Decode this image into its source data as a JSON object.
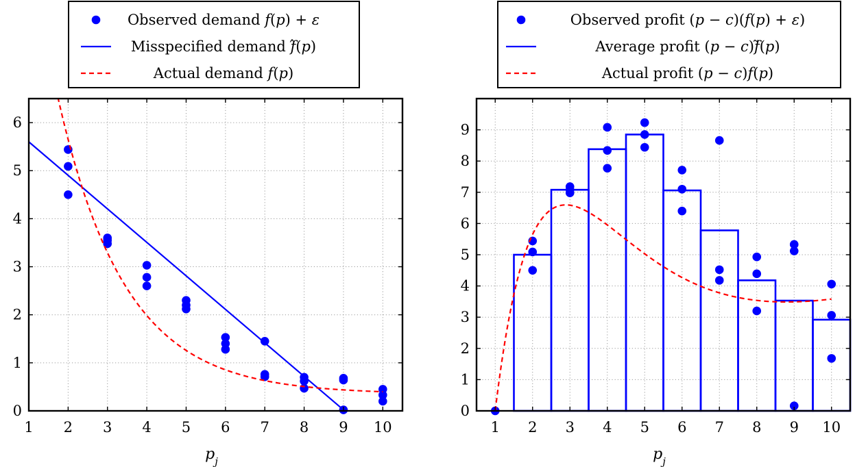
{
  "chart_data": [
    {
      "type": "scatter",
      "xlabel": "p_j",
      "xlim": [
        1,
        10.5
      ],
      "ylim": [
        0,
        6.5
      ],
      "x_ticks": [
        1,
        2,
        3,
        4,
        5,
        6,
        7,
        8,
        9,
        10
      ],
      "y_ticks": [
        0,
        1,
        2,
        3,
        4,
        5,
        6
      ],
      "grid": true,
      "legend_position": "top",
      "legend": [
        {
          "label": "Observed demand f(p) + ε",
          "style": "marker",
          "color": "#0000ff"
        },
        {
          "label": "Misspecified demand f̂(p)",
          "style": "solid",
          "color": "#0000ff"
        },
        {
          "label": "Actual demand f(p)",
          "style": "dashed",
          "color": "#ff0000"
        }
      ],
      "series": [
        {
          "kind": "scatter",
          "color": "#0000ff",
          "points": [
            [
              2,
              5.44
            ],
            [
              2,
              5.09
            ],
            [
              2,
              4.5
            ],
            [
              3,
              3.6
            ],
            [
              3,
              3.55
            ],
            [
              3,
              3.48
            ],
            [
              4,
              3.03
            ],
            [
              4,
              2.78
            ],
            [
              4,
              2.6
            ],
            [
              5,
              2.3
            ],
            [
              5,
              2.2
            ],
            [
              5,
              2.12
            ],
            [
              6,
              1.53
            ],
            [
              6,
              1.4
            ],
            [
              6,
              1.28
            ],
            [
              7,
              1.45
            ],
            [
              7,
              0.76
            ],
            [
              7,
              0.71
            ],
            [
              8,
              0.7
            ],
            [
              8,
              0.62
            ],
            [
              8,
              0.47
            ],
            [
              9,
              0.68
            ],
            [
              9,
              0.64
            ],
            [
              9,
              0.02
            ],
            [
              10,
              0.45
            ],
            [
              10,
              0.33
            ],
            [
              10,
              0.2
            ]
          ]
        },
        {
          "kind": "line",
          "color": "#0000ff",
          "points": [
            [
              1,
              5.6
            ],
            [
              9,
              0.02
            ]
          ]
        },
        {
          "kind": "dashed",
          "color": "#ff0000",
          "function": "demand"
        }
      ]
    },
    {
      "type": "bar",
      "xlabel": "p_j",
      "xlim": [
        0.5,
        10.5
      ],
      "ylim": [
        0,
        10
      ],
      "x_ticks": [
        1,
        2,
        3,
        4,
        5,
        6,
        7,
        8,
        9,
        10
      ],
      "y_ticks": [
        0,
        1,
        2,
        3,
        4,
        5,
        6,
        7,
        8,
        9
      ],
      "grid": true,
      "legend_position": "top",
      "legend": [
        {
          "label": "Observed profit (p − c)(f(p) + ε)",
          "style": "marker",
          "color": "#0000ff"
        },
        {
          "label": "Average profit (p − c)f̃(p)",
          "style": "solid",
          "color": "#0000ff"
        },
        {
          "label": "Actual profit (p − c)f(p)",
          "style": "dashed",
          "color": "#ff0000"
        }
      ],
      "bars": {
        "categories": [
          2,
          3,
          4,
          5,
          6,
          7,
          8,
          9,
          10
        ],
        "values": [
          5.0,
          7.08,
          8.38,
          8.85,
          7.06,
          5.78,
          4.18,
          3.53,
          2.92
        ]
      },
      "series": [
        {
          "kind": "scatter",
          "color": "#0000ff",
          "points": [
            [
              1,
              0
            ],
            [
              2,
              5.44
            ],
            [
              2,
              5.09
            ],
            [
              2,
              4.5
            ],
            [
              3,
              7.18
            ],
            [
              3,
              7.08
            ],
            [
              3,
              6.98
            ],
            [
              4,
              9.08
            ],
            [
              4,
              8.34
            ],
            [
              4,
              7.77
            ],
            [
              5,
              9.23
            ],
            [
              5,
              8.85
            ],
            [
              5,
              8.44
            ],
            [
              6,
              7.71
            ],
            [
              6,
              7.1
            ],
            [
              6,
              6.4
            ],
            [
              7,
              8.66
            ],
            [
              7,
              4.52
            ],
            [
              7,
              4.18
            ],
            [
              8,
              4.93
            ],
            [
              8,
              4.39
            ],
            [
              8,
              3.2
            ],
            [
              9,
              5.33
            ],
            [
              9,
              5.12
            ],
            [
              9,
              0.16
            ],
            [
              10,
              4.06
            ],
            [
              10,
              3.06
            ],
            [
              10,
              1.68
            ]
          ]
        },
        {
          "kind": "dashed",
          "color": "#ff0000",
          "function": "profit"
        }
      ]
    }
  ]
}
